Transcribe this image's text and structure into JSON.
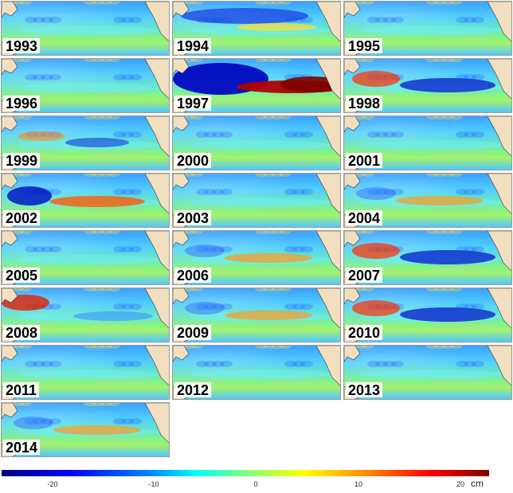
{
  "panels": [
    {
      "year": "1993",
      "pattern": "neutral"
    },
    {
      "year": "1994",
      "pattern": "neg-north"
    },
    {
      "year": "1995",
      "pattern": "neutral"
    },
    {
      "year": "1996",
      "pattern": "neutral"
    },
    {
      "year": "1997",
      "pattern": "strong-el-nino"
    },
    {
      "year": "1998",
      "pattern": "la-nina"
    },
    {
      "year": "1999",
      "pattern": "mild-neg"
    },
    {
      "year": "2000",
      "pattern": "neutral"
    },
    {
      "year": "2001",
      "pattern": "neutral"
    },
    {
      "year": "2002",
      "pattern": "el-nino"
    },
    {
      "year": "2003",
      "pattern": "neutral"
    },
    {
      "year": "2004",
      "pattern": "mild-pos"
    },
    {
      "year": "2005",
      "pattern": "neutral"
    },
    {
      "year": "2006",
      "pattern": "mild-pos"
    },
    {
      "year": "2007",
      "pattern": "la-nina"
    },
    {
      "year": "2008",
      "pattern": "west-warm"
    },
    {
      "year": "2009",
      "pattern": "mild-pos"
    },
    {
      "year": "2010",
      "pattern": "la-nina"
    },
    {
      "year": "2011",
      "pattern": "neutral"
    },
    {
      "year": "2012",
      "pattern": "neutral"
    },
    {
      "year": "2013",
      "pattern": "neutral"
    },
    {
      "year": "2014",
      "pattern": "mild-pos"
    }
  ],
  "colorbar": {
    "ticks": [
      "-20",
      "-10",
      "0",
      "10",
      "20"
    ],
    "unit": "cm",
    "range": [
      -25,
      25
    ],
    "colors": [
      "#00007f",
      "#0000ff",
      "#00ffff",
      "#ffff00",
      "#ff0000",
      "#7f0000"
    ]
  },
  "land_color": "#f2dfc0"
}
